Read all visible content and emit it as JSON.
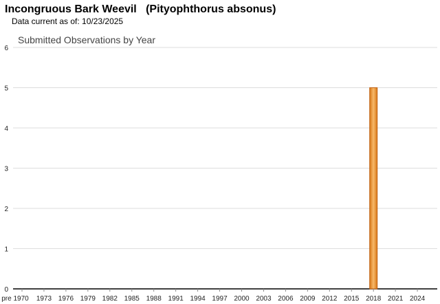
{
  "header": {
    "title": "Incongruous Bark Weevil   (Pityophthorus absonus)",
    "data_current": "Data current as of: 10/23/2025"
  },
  "chart_data": {
    "type": "bar",
    "title": "Submitted Observations by Year",
    "xlabel": "",
    "ylabel": "",
    "ylim": [
      0,
      6
    ],
    "y_ticks": [
      "0",
      "1",
      "2",
      "3",
      "4",
      "5",
      "6"
    ],
    "x_tick_labels": [
      {
        "year": 1970,
        "label": "pre 1970"
      },
      {
        "year": 1973,
        "label": "1973"
      },
      {
        "year": 1976,
        "label": "1976"
      },
      {
        "year": 1979,
        "label": "1979"
      },
      {
        "year": 1982,
        "label": "1982"
      },
      {
        "year": 1985,
        "label": "1985"
      },
      {
        "year": 1988,
        "label": "1988"
      },
      {
        "year": 1991,
        "label": "1991"
      },
      {
        "year": 1994,
        "label": "1994"
      },
      {
        "year": 1997,
        "label": "1997"
      },
      {
        "year": 2000,
        "label": "2000"
      },
      {
        "year": 2003,
        "label": "2003"
      },
      {
        "year": 2006,
        "label": "2006"
      },
      {
        "year": 2009,
        "label": "2009"
      },
      {
        "year": 2012,
        "label": "2012"
      },
      {
        "year": 2015,
        "label": "2015"
      },
      {
        "year": 2018,
        "label": "2018"
      },
      {
        "year": 2021,
        "label": "2021"
      },
      {
        "year": 2024,
        "label": "2024"
      }
    ],
    "bars": [
      {
        "year": 2018,
        "value": 5
      }
    ],
    "grid": true,
    "bar_color": "#f0a040",
    "bar_border_color": "#c06010"
  }
}
